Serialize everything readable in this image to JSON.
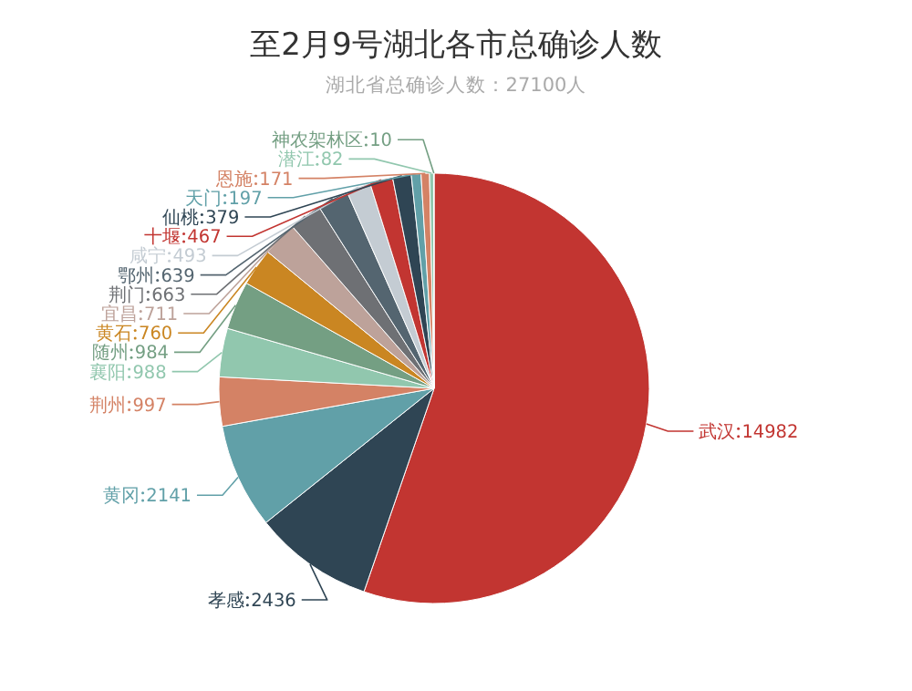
{
  "chart_data": {
    "type": "pie",
    "title": "至2月9号湖北各市总确诊人数",
    "subtitle": "湖北省总确诊人数：27100人",
    "categories": [
      "武汉",
      "孝感",
      "黄冈",
      "荆州",
      "襄阳",
      "随州",
      "黄石",
      "宜昌",
      "荆门",
      "鄂州",
      "咸宁",
      "十堰",
      "仙桃",
      "天门",
      "恩施",
      "潜江",
      "神农架林区"
    ],
    "values": [
      14982,
      2436,
      2141,
      997,
      988,
      984,
      760,
      711,
      663,
      639,
      493,
      467,
      379,
      197,
      171,
      82,
      10
    ],
    "colors": [
      "#c23531",
      "#2f4554",
      "#61a0a8",
      "#d48265",
      "#91c7ae",
      "#749f83",
      "#ca8622",
      "#bda29a",
      "#6e7074",
      "#546570",
      "#c4ccd3",
      "#c23531",
      "#2f4554",
      "#61a0a8",
      "#d48265",
      "#91c7ae",
      "#749f83"
    ],
    "data_labels": true
  }
}
